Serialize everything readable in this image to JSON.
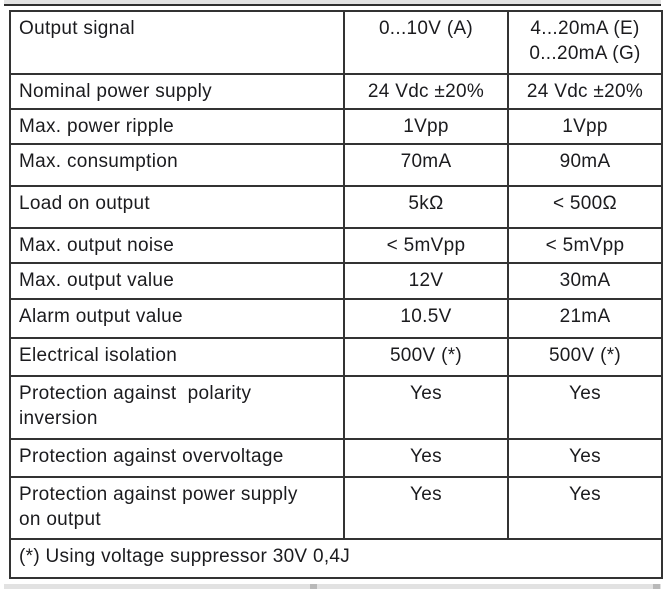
{
  "colors": {
    "border": "#333333",
    "text": "#1b1b1e",
    "strip_gray": "#e2e2e2",
    "strip_line": "#2f2f2f",
    "background": "#ffffff"
  },
  "table": {
    "rows": [
      {
        "label": "Output signal",
        "a": "0...10V (A)",
        "eg": "4...20mA (E)\n0...20mA (G)"
      },
      {
        "label": "Nominal power supply",
        "a": "24 Vdc ±20%",
        "eg": "24 Vdc ±20%"
      },
      {
        "label": "Max. power ripple",
        "a": "1Vpp",
        "eg": "1Vpp"
      },
      {
        "label": "Max. consumption",
        "a": "70mA",
        "eg": "90mA"
      },
      {
        "label": "Load on output",
        "a": "5kΩ",
        "eg": "< 500Ω"
      },
      {
        "label": "Max. output noise",
        "a": "< 5mVpp",
        "eg": "< 5mVpp"
      },
      {
        "label": "Max. output value",
        "a": "12V",
        "eg": "30mA"
      },
      {
        "label": "Alarm output value",
        "a": "10.5V",
        "eg": "21mA"
      },
      {
        "label": "Electrical isolation",
        "a": "500V (*)",
        "eg": "500V (*)"
      },
      {
        "label": "Protection against  polarity\ninversion",
        "a": "Yes",
        "eg": "Yes"
      },
      {
        "label": "Protection against overvoltage",
        "a": "Yes",
        "eg": "Yes"
      },
      {
        "label": "Protection against power supply\non output",
        "a": "Yes",
        "eg": "Yes"
      }
    ],
    "footnote": "(*) Using voltage suppressor 30V 0,4J"
  }
}
